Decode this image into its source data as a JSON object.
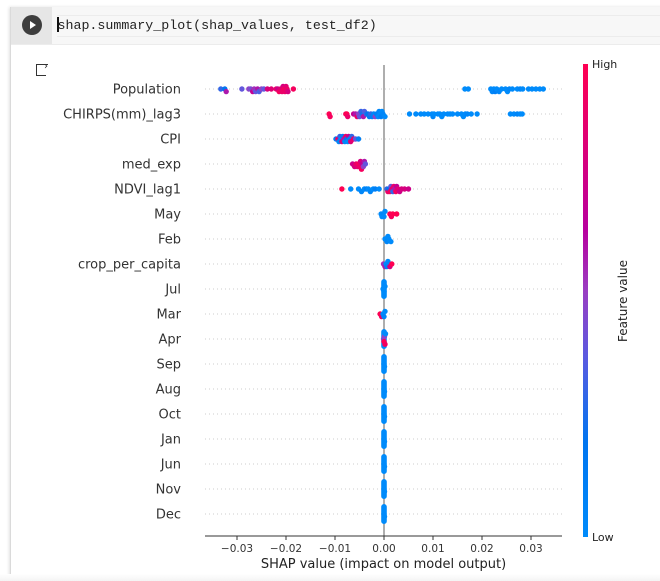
{
  "cell": {
    "code": "shap.summary_plot(shap_values, test_df2)",
    "run_icon": "play-circle-icon",
    "output_icon": "output-arrow-icon"
  },
  "chart_data": {
    "type": "scatter",
    "subtype": "shap-beeswarm",
    "xlabel": "SHAP value (impact on model output)",
    "xlim": [
      -0.036,
      0.036
    ],
    "xticks": [
      -0.03,
      -0.02,
      -0.01,
      0.0,
      0.01,
      0.02,
      0.03
    ],
    "xtick_labels": [
      "−0.03",
      "−0.02",
      "−0.01",
      "0.00",
      "0.01",
      "0.02",
      "0.03"
    ],
    "grid": "dotted horizontal row guides",
    "colorbar": {
      "label": "Feature value",
      "high_label": "High",
      "low_label": "Low",
      "high_color": "#ff0052",
      "low_color": "#008bfb",
      "placement": "right"
    },
    "features": [
      {
        "name": "Population",
        "points": [
          [
            -0.0333,
            0.3
          ],
          [
            -0.0325,
            0.2
          ],
          [
            -0.0322,
            0.6
          ],
          [
            -0.029,
            0.4
          ],
          [
            -0.0276,
            0.5
          ],
          [
            -0.0272,
            0.45
          ],
          [
            -0.0268,
            0.7
          ],
          [
            -0.0265,
            0.55
          ],
          [
            -0.0262,
            0.4
          ],
          [
            -0.0258,
            0.6
          ],
          [
            -0.0255,
            0.35
          ],
          [
            -0.025,
            0.5
          ],
          [
            -0.0245,
            0.4
          ],
          [
            -0.0238,
            0.8
          ],
          [
            -0.023,
            0.85
          ],
          [
            -0.022,
            0.9
          ],
          [
            -0.0217,
            0.75
          ],
          [
            -0.0214,
            0.95
          ],
          [
            -0.0211,
            0.85
          ],
          [
            -0.0208,
            0.9
          ],
          [
            -0.0206,
            0.8
          ],
          [
            -0.0204,
            0.95
          ],
          [
            -0.0202,
            0.9
          ],
          [
            -0.02,
            0.85
          ],
          [
            -0.0198,
            0.9
          ],
          [
            -0.0196,
            0.8
          ],
          [
            -0.0185,
            0.95
          ],
          [
            0.0165,
            0.0
          ],
          [
            0.0172,
            0.0
          ],
          [
            0.0218,
            0.0
          ],
          [
            0.0221,
            0.05
          ],
          [
            0.0224,
            0.0
          ],
          [
            0.0227,
            0.1
          ],
          [
            0.023,
            0.0
          ],
          [
            0.0235,
            0.05
          ],
          [
            0.024,
            0.0
          ],
          [
            0.0248,
            0.0
          ],
          [
            0.0252,
            0.0
          ],
          [
            0.0256,
            0.05
          ],
          [
            0.0262,
            0.0
          ],
          [
            0.0272,
            0.0
          ],
          [
            0.0278,
            0.05
          ],
          [
            0.0283,
            0.0
          ],
          [
            0.0295,
            0.0
          ],
          [
            0.0302,
            0.0
          ],
          [
            0.031,
            0.0
          ],
          [
            0.0318,
            0.0
          ],
          [
            0.0325,
            0.0
          ]
        ]
      },
      {
        "name": "CHIRPS(mm)_lag3",
        "points": [
          [
            -0.0112,
            1.0
          ],
          [
            -0.011,
            0.95
          ],
          [
            -0.0078,
            0.95
          ],
          [
            -0.0076,
            1.0
          ],
          [
            -0.0074,
            0.9
          ],
          [
            -0.0062,
            0.7
          ],
          [
            -0.0058,
            0.6
          ],
          [
            -0.0055,
            0.9
          ],
          [
            -0.0052,
            0.5
          ],
          [
            -0.005,
            0.4
          ],
          [
            -0.0047,
            0.3
          ],
          [
            -0.0044,
            0.25
          ],
          [
            -0.0042,
            0.6
          ],
          [
            -0.004,
            0.35
          ],
          [
            -0.0036,
            0.3
          ],
          [
            -0.0033,
            0.2
          ],
          [
            -0.003,
            0.15
          ],
          [
            -0.0027,
            0.3
          ],
          [
            -0.0024,
            0.1
          ],
          [
            -0.0021,
            0.05
          ],
          [
            -0.0018,
            0.5
          ],
          [
            -0.0015,
            0.1
          ],
          [
            -0.0012,
            0.0
          ],
          [
            -0.001,
            0.05
          ],
          [
            -0.0008,
            0.0
          ],
          [
            -0.0006,
            0.1
          ],
          [
            -0.0004,
            0.0
          ],
          [
            -0.0002,
            0.05
          ],
          [
            0.0002,
            0.0
          ],
          [
            0.0052,
            0.0
          ],
          [
            0.0065,
            0.0
          ],
          [
            0.0075,
            0.0
          ],
          [
            0.0082,
            0.0
          ],
          [
            0.009,
            0.0
          ],
          [
            0.0098,
            0.0
          ],
          [
            0.01,
            0.05
          ],
          [
            0.0102,
            0.0
          ],
          [
            0.011,
            0.0
          ],
          [
            0.0114,
            0.0
          ],
          [
            0.0118,
            0.0
          ],
          [
            0.0122,
            0.0
          ],
          [
            0.013,
            0.0
          ],
          [
            0.0135,
            0.0
          ],
          [
            0.014,
            0.0
          ],
          [
            0.015,
            0.0
          ],
          [
            0.0158,
            0.0
          ],
          [
            0.0162,
            0.0
          ],
          [
            0.0166,
            0.0
          ],
          [
            0.017,
            0.05
          ],
          [
            0.0178,
            0.0
          ],
          [
            0.019,
            0.0
          ],
          [
            0.0258,
            0.0
          ],
          [
            0.0265,
            0.0
          ],
          [
            0.0272,
            0.05
          ],
          [
            0.0278,
            0.0
          ],
          [
            0.0282,
            0.0
          ]
        ]
      },
      {
        "name": "CPI",
        "points": [
          [
            -0.0098,
            0.1
          ],
          [
            -0.0094,
            0.9
          ],
          [
            -0.0092,
            0.05
          ],
          [
            -0.009,
            0.3
          ],
          [
            -0.0088,
            0.0
          ],
          [
            -0.0086,
            0.8
          ],
          [
            -0.0084,
            0.1
          ],
          [
            -0.0082,
            0.6
          ],
          [
            -0.008,
            0.05
          ],
          [
            -0.0078,
            0.9
          ],
          [
            -0.0076,
            0.2
          ],
          [
            -0.0074,
            0.0
          ],
          [
            -0.0072,
            0.7
          ],
          [
            -0.007,
            0.1
          ],
          [
            -0.0068,
            0.85
          ],
          [
            -0.0066,
            0.3
          ],
          [
            -0.0062,
            0.9
          ],
          [
            -0.0058,
            0.4
          ],
          [
            -0.0052,
            0.1
          ]
        ]
      },
      {
        "name": "med_exp",
        "points": [
          [
            -0.0064,
            0.75
          ],
          [
            -0.006,
            0.8
          ],
          [
            -0.0057,
            0.9
          ],
          [
            -0.0054,
            0.85
          ],
          [
            -0.0052,
            0.95
          ],
          [
            -0.005,
            0.9
          ],
          [
            -0.0048,
            0.8
          ],
          [
            -0.0046,
            0.95
          ],
          [
            -0.0044,
            0.7
          ],
          [
            -0.0042,
            0.5
          ],
          [
            -0.004,
            0.6
          ],
          [
            -0.0038,
            0.4
          ]
        ]
      },
      {
        "name": "NDVI_lag1",
        "points": [
          [
            -0.0086,
            1.0
          ],
          [
            -0.0068,
            0.0
          ],
          [
            -0.0052,
            0.0
          ],
          [
            -0.0046,
            0.05
          ],
          [
            -0.004,
            0.0
          ],
          [
            -0.0036,
            0.1
          ],
          [
            -0.0032,
            0.0
          ],
          [
            -0.0028,
            0.05
          ],
          [
            -0.0022,
            0.0
          ],
          [
            -0.0018,
            0.1
          ],
          [
            -0.001,
            0.0
          ],
          [
            0.0006,
            0.3
          ],
          [
            0.0008,
            0.9
          ],
          [
            0.001,
            0.2
          ],
          [
            0.0012,
            0.95
          ],
          [
            0.0014,
            0.4
          ],
          [
            0.0016,
            0.85
          ],
          [
            0.0018,
            0.3
          ],
          [
            0.002,
            0.9
          ],
          [
            0.0022,
            0.6
          ],
          [
            0.0024,
            0.95
          ],
          [
            0.0026,
            0.7
          ],
          [
            0.0028,
            0.85
          ],
          [
            0.0032,
            0.75
          ],
          [
            0.0036,
            0.8
          ],
          [
            0.0042,
            0.8
          ],
          [
            0.005,
            0.75
          ]
        ]
      },
      {
        "name": "May",
        "points": [
          [
            -0.0006,
            0.0
          ],
          [
            -0.0004,
            0.0
          ],
          [
            -0.0002,
            0.05
          ],
          [
            0.0,
            0.0
          ],
          [
            0.0002,
            0.0
          ],
          [
            0.0012,
            1.0
          ],
          [
            0.0015,
            0.95
          ],
          [
            0.0018,
            1.0
          ],
          [
            0.0026,
            1.0
          ]
        ]
      },
      {
        "name": "Feb",
        "points": [
          [
            0.0002,
            0.0
          ],
          [
            0.0004,
            0.0
          ],
          [
            0.0006,
            0.05
          ],
          [
            0.0008,
            0.0
          ],
          [
            0.001,
            0.0
          ],
          [
            0.0014,
            0.0
          ]
        ]
      },
      {
        "name": "crop_per_capita",
        "points": [
          [
            -0.0001,
            0.55
          ],
          [
            0.0002,
            0.6
          ],
          [
            0.0004,
            0.0
          ],
          [
            0.0006,
            0.1
          ],
          [
            0.0008,
            0.0
          ],
          [
            0.001,
            0.05
          ],
          [
            0.0012,
            0.8
          ],
          [
            0.0016,
            1.0
          ]
        ]
      },
      {
        "name": "Jul",
        "points": [
          [
            -0.0002,
            0.0
          ],
          [
            0.0,
            0.0
          ],
          [
            0.0002,
            0.0
          ]
        ]
      },
      {
        "name": "Mar",
        "points": [
          [
            -0.0008,
            1.0
          ],
          [
            -0.0005,
            0.95
          ],
          [
            -0.0002,
            0.0
          ],
          [
            0.0,
            0.05
          ],
          [
            0.0002,
            0.0
          ]
        ]
      },
      {
        "name": "Apr",
        "points": [
          [
            -0.0001,
            0.45
          ],
          [
            0.0,
            1.0
          ],
          [
            0.0001,
            0.5
          ],
          [
            0.0002,
            0.95
          ],
          [
            0.0003,
            0.0
          ]
        ]
      },
      {
        "name": "Sep",
        "points": [
          [
            0.0,
            0.0
          ],
          [
            0.0001,
            0.0
          ]
        ]
      },
      {
        "name": "Aug",
        "points": [
          [
            0.0,
            0.0
          ],
          [
            0.0001,
            0.0
          ]
        ]
      },
      {
        "name": "Oct",
        "points": [
          [
            0.0,
            0.0
          ],
          [
            0.0001,
            0.0
          ]
        ]
      },
      {
        "name": "Jan",
        "points": [
          [
            0.0,
            0.0
          ],
          [
            0.0001,
            0.0
          ]
        ]
      },
      {
        "name": "Jun",
        "points": [
          [
            0.0,
            0.0
          ],
          [
            0.0001,
            0.0
          ]
        ]
      },
      {
        "name": "Nov",
        "points": [
          [
            0.0,
            0.0
          ],
          [
            0.0001,
            0.0
          ]
        ]
      },
      {
        "name": "Dec",
        "points": [
          [
            0.0,
            0.0
          ],
          [
            0.0001,
            0.0
          ]
        ]
      }
    ]
  }
}
